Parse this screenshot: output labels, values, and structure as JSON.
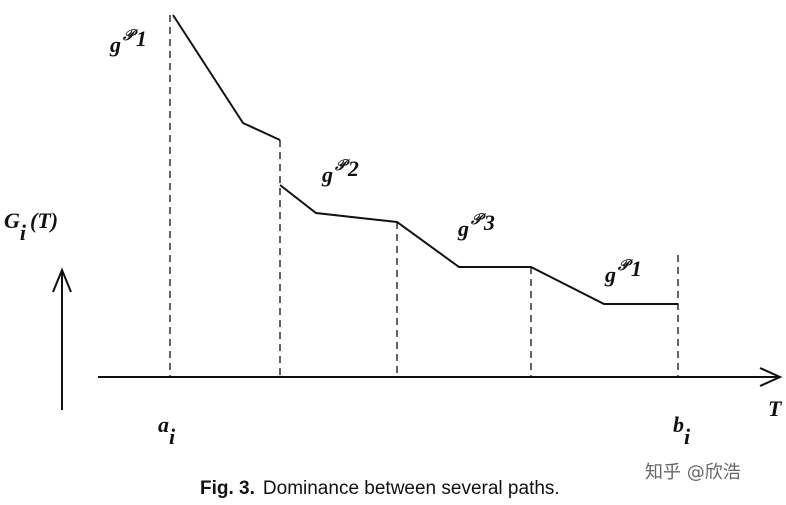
{
  "labels": [
    {
      "base": "g",
      "sup": "𝒫",
      "sub": "1"
    },
    {
      "base": "g",
      "sup": "𝒫",
      "sub": "2"
    },
    {
      "base": "g",
      "sup": "𝒫",
      "sub": "3"
    },
    {
      "base": "g",
      "sup": "𝒫",
      "sub": "1"
    }
  ],
  "y_axis": {
    "base": "G",
    "sub": "i",
    "arg": "(T)"
  },
  "x_axis": "T",
  "ticks": [
    {
      "base": "a",
      "sub": "i"
    },
    {
      "base": "b",
      "sub": "i"
    }
  ],
  "caption": {
    "label": "Fig. 3.",
    "text": "Dominance between several paths."
  },
  "watermark": "知乎 @欣浩"
}
